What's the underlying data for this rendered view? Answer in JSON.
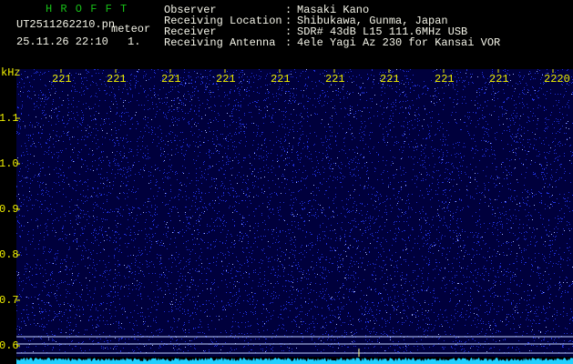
{
  "header": {
    "app": "H R O F F T",
    "file": "UT2511262210.pn",
    "tag": "meteor",
    "datetime": "25.11.26 22:10",
    "index": "1.",
    "info": [
      {
        "label": "Observer",
        "value": "Masaki Kano"
      },
      {
        "label": "Receiving Location",
        "value": "Shibukawa, Gunma, Japan"
      },
      {
        "label": "Receiver",
        "value": "SDR# 43dB L15 111.6MHz USB"
      },
      {
        "label": "Receiving Antenna",
        "value": "4ele Yagi Az 230 for Kansai VOR"
      }
    ],
    "separator": ":"
  },
  "waterfall": {
    "unit": "kHz",
    "x_labels": [
      "221",
      "221",
      "221",
      "221",
      "221",
      "221",
      "221",
      "221",
      "221",
      "2220"
    ],
    "y_labels": [
      "1.1",
      "1.0",
      "0.9",
      "0.8",
      "0.7",
      "0.6"
    ]
  }
}
